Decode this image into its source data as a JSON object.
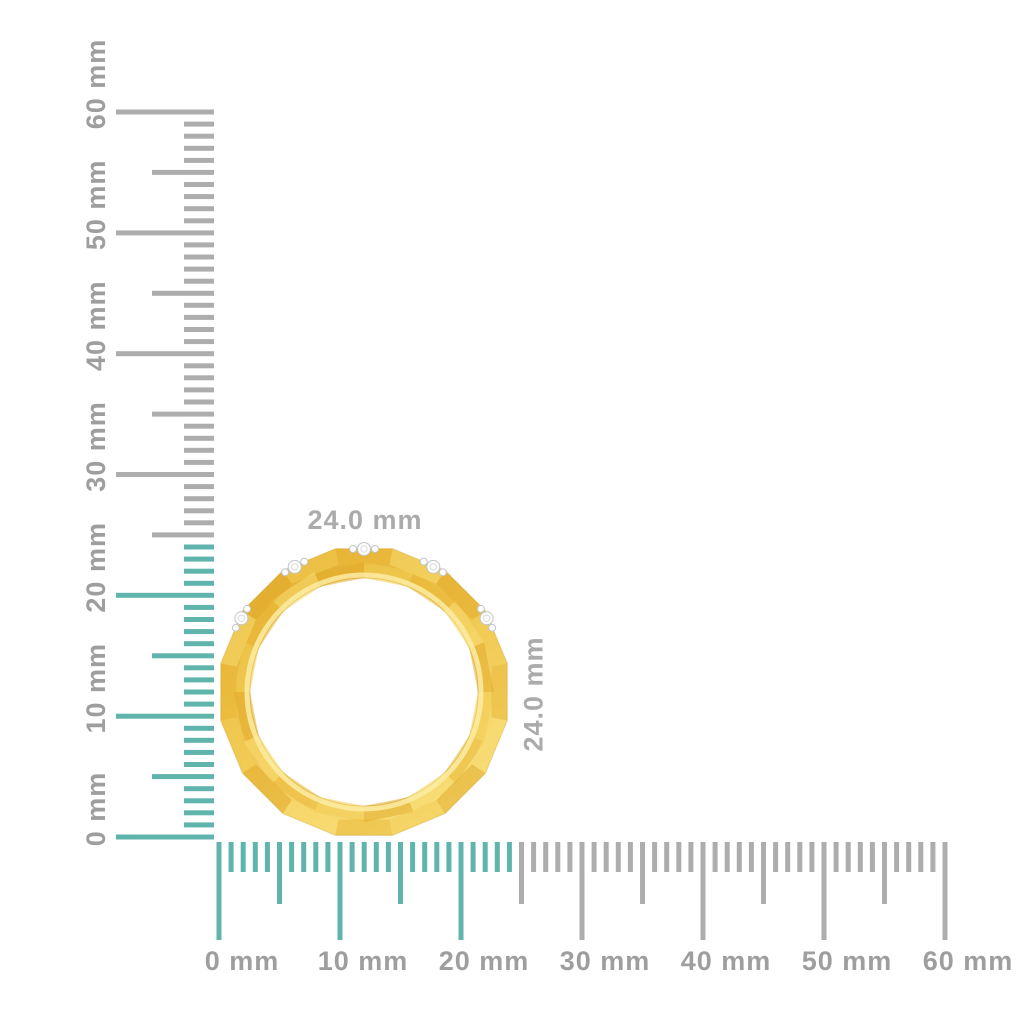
{
  "scene": {
    "type": "product-dimension-diagram",
    "subject": "Yellow gold faceted eternity band ring with diamond accents, edge view",
    "background_color": "#ffffff"
  },
  "dimensions": {
    "width_label": "24.0 mm",
    "height_label": "24.0 mm",
    "label_color": "#ababab"
  },
  "rulers": {
    "unit": "mm",
    "min_mm": 0,
    "max_mm": 60,
    "minor_step_mm": 1,
    "medium_step_mm": 5,
    "major_step_mm": 10,
    "object_extent_mm": 24,
    "inside_tick_color": "#5fb4ac",
    "outside_tick_color": "#adadad",
    "label_color": "#9e9e9e",
    "vertical_labels": [
      "0 mm",
      "10 mm",
      "20 mm",
      "30 mm",
      "40 mm",
      "50 mm",
      "60 mm"
    ],
    "horizontal_labels": [
      "0 mm",
      "10 mm",
      "20 mm",
      "30 mm",
      "40 mm",
      "50 mm",
      "60 mm"
    ]
  },
  "ring": {
    "metal": "yellow gold",
    "gold_gradient": [
      "#dfa92b",
      "#eec14a",
      "#f8df7e"
    ],
    "facet_colors": [
      "#f3cc52",
      "#e2ab2a",
      "#f7da6e",
      "#e9b837"
    ],
    "inner_rim_highlight": "#fbeca3",
    "outline_color": "#c9941a",
    "stone_fill": "#fdfdfd",
    "stone_outline": "#c2c6c9",
    "diamond_cluster_angles_deg": [
      149,
      119,
      90,
      61,
      31
    ]
  }
}
